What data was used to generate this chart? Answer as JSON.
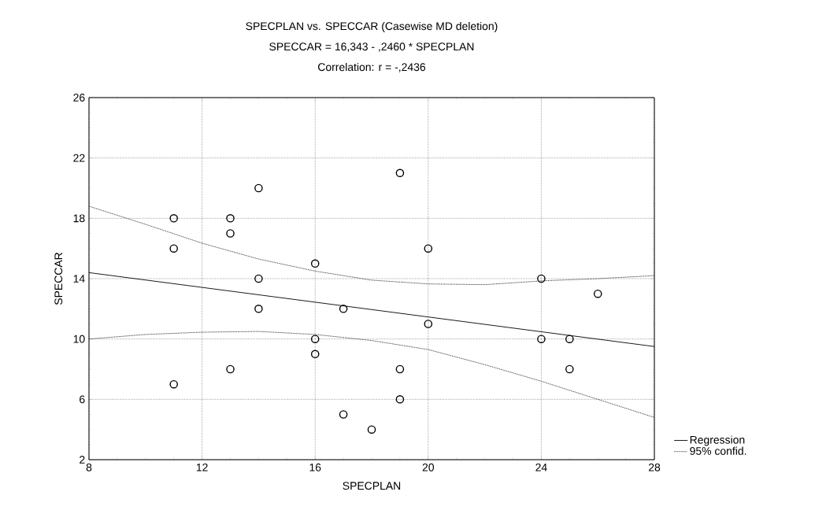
{
  "chart_data": {
    "type": "scatter",
    "title": "SPECPLAN vs. SPECCAR (Casewise MD deletion)",
    "subtitle": "SPECCAR = 16,343 - ,2460 * SPECPLAN",
    "annotations": [
      "Correlation: r = -,2436"
    ],
    "xlabel": "SPECPLAN",
    "ylabel": "SPECCAR",
    "xlim": [
      8,
      28
    ],
    "ylim": [
      2,
      26
    ],
    "xticks": [
      8,
      12,
      16,
      20,
      24,
      28
    ],
    "yticks": [
      2,
      6,
      10,
      14,
      18,
      22,
      26
    ],
    "grid": true,
    "legend": "bottom right",
    "series": [
      {
        "marker": "circle",
        "color": "#000000",
        "x": [
          11,
          11,
          11,
          13,
          13,
          13,
          14,
          14,
          14,
          16,
          16,
          16,
          17,
          17,
          18,
          19,
          19,
          19,
          20,
          20,
          24,
          24,
          25,
          25,
          26
        ],
        "values": [
          18,
          16,
          7,
          18,
          17,
          8,
          20,
          14,
          12,
          15,
          10,
          9,
          12,
          5,
          4,
          21,
          8,
          6,
          16,
          11,
          14,
          10,
          10,
          8,
          13
        ]
      },
      {
        "type": "line",
        "name": "Regression",
        "color": "#000000",
        "line_style": "solid",
        "marker": "none",
        "x": [
          8,
          28
        ],
        "values": [
          14.4,
          9.5
        ]
      },
      {
        "type": "line",
        "name": "95% confid.",
        "color": "#000000",
        "line_style": "dotted",
        "marker": "none",
        "x": [
          8,
          10,
          12,
          14,
          16,
          18,
          20,
          22,
          24,
          26,
          28
        ],
        "values": [
          18.8,
          17.6,
          16.35,
          15.3,
          14.5,
          13.9,
          13.65,
          13.6,
          13.85,
          14.0,
          14.2
        ]
      },
      {
        "type": "line",
        "color": "#000000",
        "line_style": "dotted",
        "marker": "none",
        "x": [
          8,
          10,
          12,
          14,
          16,
          18,
          20,
          22,
          24,
          26,
          28
        ],
        "values": [
          10.0,
          10.3,
          10.45,
          10.5,
          10.3,
          9.9,
          9.3,
          8.3,
          7.2,
          6.0,
          4.8
        ]
      }
    ]
  }
}
